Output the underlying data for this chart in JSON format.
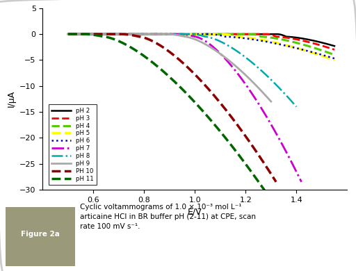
{
  "xlabel": "E/V",
  "ylabel": "I/μA",
  "xlim": [
    0.4,
    1.6
  ],
  "ylim": [
    -30,
    5
  ],
  "xticks": [
    0.6,
    0.8,
    1.0,
    1.2,
    1.4
  ],
  "yticks": [
    5,
    0,
    -5,
    -10,
    -15,
    -20,
    -25,
    -30
  ],
  "bg_color": "#ffffff",
  "border_color": "#cccccc",
  "figure_label": "Figure 2a",
  "caption_line1": "Cyclic voltammograms of 1.0 × 10⁻³ mol L⁻¹",
  "caption_line2": "articaine HCl in BR buffer pH (2-11) at CPE, scan",
  "caption_line3": "rate 100 mV s⁻¹.",
  "curves": [
    {
      "label": "pH 2",
      "color": "#000000",
      "ls": "-",
      "lw": 1.8,
      "flat_end": 1.32,
      "drop_x": 1.36,
      "peak_v": 1.55,
      "peak_i": -1.8
    },
    {
      "label": "pH 3",
      "color": "#ff0000",
      "ls": "--",
      "lw": 2.0,
      "flat_end": 1.28,
      "drop_x": 1.32,
      "peak_v": 1.55,
      "peak_i": -2.5
    },
    {
      "label": "pH 4",
      "color": "#55cc00",
      "ls": "--",
      "lw": 2.2,
      "flat_end": 1.22,
      "drop_x": 1.26,
      "peak_v": 1.55,
      "peak_i": -3.5
    },
    {
      "label": "pH 5",
      "color": "#ffff00",
      "ls": "--",
      "lw": 2.5,
      "flat_end": 1.1,
      "drop_x": 1.16,
      "peak_v": 1.55,
      "peak_i": -4.5
    },
    {
      "label": "pH 6",
      "color": "#0000cc",
      "ls": ":",
      "lw": 1.8,
      "flat_end": 1.05,
      "drop_x": 1.12,
      "peak_v": 1.55,
      "peak_i": -4.2
    },
    {
      "label": "pH 7",
      "color": "#cc00cc",
      "ls": "-.",
      "lw": 2.0,
      "flat_end": 0.93,
      "drop_x": 1.0,
      "peak_v": 1.42,
      "peak_i": -28.0
    },
    {
      "label": "pH 8",
      "color": "#00aaaa",
      "ls": "-.",
      "lw": 1.8,
      "flat_end": 0.98,
      "drop_x": 1.04,
      "peak_v": 1.4,
      "peak_i": -13.5
    },
    {
      "label": "pH 9",
      "color": "#aaaaaa",
      "ls": "-",
      "lw": 2.0,
      "flat_end": 0.88,
      "drop_x": 0.96,
      "peak_v": 1.3,
      "peak_i": -12.5
    },
    {
      "label": "PH 10",
      "color": "#8b0000",
      "ls": "--",
      "lw": 2.5,
      "flat_end": 0.7,
      "drop_x": 0.78,
      "peak_v": 1.32,
      "peak_i": -28.0
    },
    {
      "label": "pH 11",
      "color": "#006600",
      "ls": "--",
      "lw": 2.5,
      "flat_end": 0.55,
      "drop_x": 0.64,
      "peak_v": 1.28,
      "peak_i": -30.0
    }
  ]
}
